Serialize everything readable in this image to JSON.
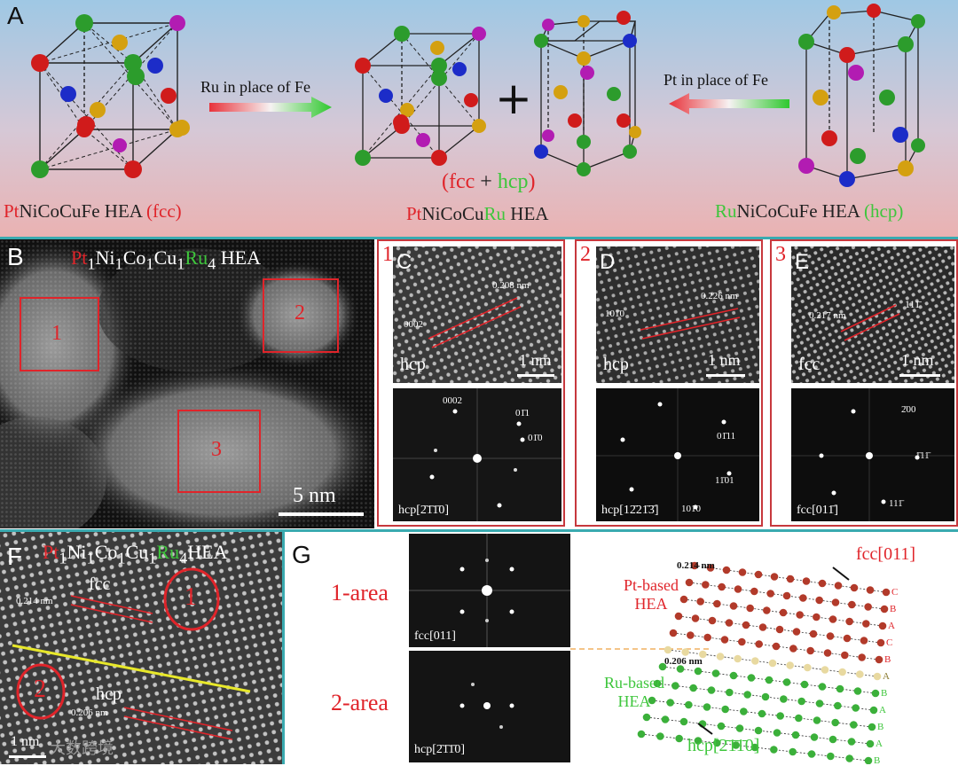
{
  "panels": {
    "a": "A",
    "b": "B",
    "c": "C",
    "d": "D",
    "e": "E",
    "f": "F",
    "g": "G"
  },
  "panel_a": {
    "left": {
      "el1": "Pt",
      "rest": "NiCoCuFe HEA ",
      "phase": "(fcc)"
    },
    "center": {
      "el1": "Pt",
      "mid": "NiCoCu",
      "el2": "Ru",
      "rest": " HEA",
      "fcc": "(fcc",
      "plus": " + ",
      "hcp": "hcp",
      "close": ")"
    },
    "right": {
      "el1": "Ru",
      "rest": "NiCoCuFe HEA ",
      "phase": "(hcp)"
    },
    "arrow_left_text": "Ru in place of Fe",
    "arrow_right_text": "Pt in place of Fe",
    "plus_sign": "+"
  },
  "panel_b": {
    "title_pt": "Pt",
    "sub1": "1",
    "title_ni": "Ni",
    "sub2": "1",
    "title_co": "Co",
    "sub3": "1",
    "title_cu": "Cu",
    "sub4": "1",
    "title_ru": "Ru",
    "sub5": "4",
    "title_hea": " HEA",
    "regions": [
      "1",
      "2",
      "3"
    ],
    "scale": "5 nm"
  },
  "panel_c": {
    "index": "1",
    "phase": "hcp",
    "d": "0.208 nm",
    "plane": "0002",
    "scale": "1 nm",
    "fft_labels": [
      "0002",
      "01̄1",
      "01̄0"
    ],
    "zone": "hcp[2̄1̄1̄0]"
  },
  "panel_d": {
    "index": "2",
    "phase": "hcp",
    "d": "0.226 nm",
    "plane": "101̄0",
    "scale": "1 nm",
    "fft_labels": [
      "01̄11",
      "11̄01",
      "101̄0"
    ],
    "zone": "hcp[12̄21̄3̄]"
  },
  "panel_e": {
    "index": "3",
    "phase": "fcc",
    "d": "0.217 nm",
    "plane": "111̄",
    "scale": "1 nm",
    "fft_labels": [
      "2̄00",
      "1̄11̄",
      "111̄"
    ],
    "zone": "fcc[011̄]"
  },
  "panel_f": {
    "title_pt": "Pt",
    "sub1": "1",
    "title_ni": "Ni",
    "sub2": "1",
    "title_co": "Co",
    "sub3": "1",
    "title_cu": "Cu",
    "sub4": "1",
    "title_ru": "Ru",
    "sub5": "4",
    "title_hea": "HEA",
    "fcc": "fcc",
    "hcp": "hcp",
    "d1": "0.214 nm",
    "d2": "0.206 nm",
    "circle1": "1",
    "circle2": "2",
    "scale": "1 nm",
    "watermark": "大数跨境"
  },
  "panel_g": {
    "area1": "1-area",
    "area2": "2-area",
    "fft1_zone": "fcc[011]",
    "fft2_zone": "hcp[2̄1̄1̄0]",
    "fcc_zone": "fcc[011]",
    "hcp_zone": "hcp[2̄1̄1̄0]",
    "pt_label_1": "Pt-based",
    "pt_label_2": "HEA",
    "ru_label_1": "Ru-based",
    "ru_label_2": "HEA",
    "d1": "0.214 nm",
    "d2": "0.206 nm",
    "stack": [
      "C",
      "B",
      "A",
      "C",
      "B",
      "A",
      "B",
      "A",
      "B",
      "A",
      "B"
    ]
  },
  "colors": {
    "pt": "#e0242a",
    "ru": "#3ec63c",
    "frame": "#c7383d",
    "divider": "#3aaab0"
  }
}
